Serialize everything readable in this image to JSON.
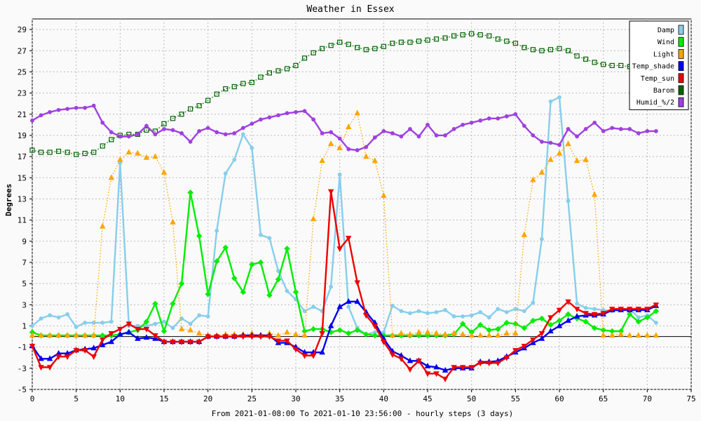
{
  "chart_data": {
    "type": "line",
    "title": "Weather in Essex",
    "xlabel": "From 2021-01-08:00 To 2021-01-10 23:56:00 - hourly steps (3 days)",
    "ylabel": "Degrees",
    "xlim": [
      0,
      75
    ],
    "ylim": [
      -5,
      30
    ],
    "x_ticks": [
      0,
      5,
      10,
      15,
      20,
      25,
      30,
      35,
      40,
      45,
      50,
      55,
      60,
      65,
      70,
      75
    ],
    "y_ticks": [
      -5,
      -3,
      -1,
      1,
      3,
      5,
      7,
      9,
      11,
      13,
      15,
      17,
      19,
      21,
      23,
      25,
      27,
      29
    ],
    "grid": true,
    "legend_position": "top-right",
    "series": [
      {
        "name": "Damp",
        "color": "#87CEEB",
        "style": "solid",
        "marker": "dot",
        "values": [
          1.0,
          1.7,
          2.0,
          1.8,
          2.1,
          0.9,
          1.3,
          1.3,
          1.3,
          1.4,
          16.4,
          1.0,
          1.0,
          1.0,
          1.2,
          1.4,
          0.8,
          1.7,
          1.2,
          2.0,
          1.9,
          10.0,
          15.4,
          16.7,
          19.1,
          17.8,
          9.6,
          9.3,
          6.2,
          4.3,
          3.5,
          2.4,
          2.8,
          2.4,
          4.7,
          15.3,
          2.8,
          0.8,
          0.2,
          0.4,
          0.4,
          2.9,
          2.4,
          2.2,
          2.4,
          2.2,
          2.3,
          2.5,
          1.9,
          1.9,
          2.0,
          2.3,
          1.8,
          2.6,
          2.3,
          2.6,
          2.4,
          3.2,
          9.2,
          22.2,
          22.6,
          12.8,
          3.1,
          2.7,
          2.6,
          2.5,
          2.4,
          2.5,
          2.6,
          1.8,
          2.0,
          1.3
        ]
      },
      {
        "name": "Wind",
        "color": "#00EE00",
        "style": "solid",
        "marker": "diamond",
        "values": [
          0.4,
          0.1,
          0.1,
          0.1,
          0.1,
          0.1,
          0.1,
          0.1,
          0.1,
          0.1,
          0.2,
          0.4,
          0.6,
          1.4,
          3.1,
          0.5,
          3.1,
          5.0,
          13.6,
          9.5,
          4.0,
          7.1,
          8.4,
          5.5,
          4.2,
          6.8,
          7.0,
          3.9,
          5.4,
          8.3,
          4.2,
          0.5,
          0.7,
          0.7,
          0.4,
          0.6,
          0.3,
          0.6,
          0.2,
          0.1,
          0.1,
          0.1,
          0.1,
          0.1,
          0.1,
          0.1,
          0.1,
          0.1,
          0.2,
          1.2,
          0.4,
          1.1,
          0.6,
          0.7,
          1.3,
          1.2,
          0.8,
          1.5,
          1.7,
          1.1,
          1.5,
          2.1,
          1.7,
          1.4,
          0.8,
          0.6,
          0.5,
          0.5,
          2.1,
          1.4,
          1.8,
          2.4
        ]
      },
      {
        "name": "Light",
        "color": "#FFA500",
        "style": "dotted",
        "marker": "triangle-up",
        "values": [
          0.1,
          0.1,
          0.1,
          0.1,
          0.1,
          0.1,
          0.1,
          0.1,
          10.4,
          15.0,
          16.7,
          17.4,
          17.3,
          16.9,
          17.0,
          15.5,
          10.8,
          0.7,
          0.6,
          0.3,
          0.1,
          0.1,
          0.2,
          0.2,
          0.2,
          0.3,
          0.1,
          0.3,
          0.1,
          0.4,
          0.2,
          0.1,
          11.1,
          16.6,
          18.2,
          17.8,
          19.8,
          21.1,
          17.0,
          16.6,
          13.3,
          0.1,
          0.3,
          0.2,
          0.4,
          0.4,
          0.3,
          0.2,
          0.3,
          0.2,
          0.1,
          0.1,
          0.1,
          0.1,
          0.3,
          0.3,
          9.6,
          14.8,
          15.5,
          16.7,
          17.3,
          18.2,
          16.6,
          16.7,
          13.4,
          0.1,
          0.1,
          0.2,
          0.1,
          0.1,
          0.1,
          0.1
        ]
      },
      {
        "name": "Temp_shade",
        "color": "#0000EE",
        "style": "solid",
        "marker": "triangle-up",
        "values": [
          -0.9,
          -2.1,
          -2.1,
          -1.6,
          -1.6,
          -1.3,
          -1.2,
          -1.1,
          -0.8,
          -0.5,
          0.2,
          0.4,
          -0.2,
          -0.1,
          -0.2,
          -0.5,
          -0.5,
          -0.5,
          -0.5,
          -0.5,
          0.0,
          0.0,
          0.0,
          0.0,
          0.1,
          0.1,
          0.1,
          0.1,
          -0.6,
          -0.6,
          -1.0,
          -1.5,
          -1.5,
          -1.5,
          1.0,
          2.8,
          3.3,
          3.3,
          2.3,
          1.3,
          -0.2,
          -1.4,
          -1.8,
          -2.3,
          -2.3,
          -2.8,
          -2.9,
          -3.2,
          -3.0,
          -3.0,
          -3.0,
          -2.4,
          -2.4,
          -2.3,
          -1.9,
          -1.5,
          -1.1,
          -0.6,
          -0.2,
          0.5,
          1.0,
          1.5,
          1.9,
          2.0,
          2.0,
          2.1,
          2.5,
          2.5,
          2.5,
          2.5,
          2.5,
          2.9
        ]
      },
      {
        "name": "Temp_sun",
        "color": "#EE0000",
        "style": "solid",
        "marker": "triangle-down",
        "values": [
          -0.9,
          -2.9,
          -2.9,
          -1.9,
          -1.9,
          -1.3,
          -1.3,
          -1.9,
          -0.3,
          0.3,
          0.7,
          1.2,
          0.7,
          0.7,
          0.1,
          -0.5,
          -0.5,
          -0.5,
          -0.5,
          -0.5,
          0.0,
          0.0,
          0.0,
          0.0,
          0.0,
          0.0,
          0.0,
          0.0,
          -0.4,
          -0.4,
          -1.2,
          -1.8,
          -1.8,
          0.3,
          13.7,
          8.3,
          9.3,
          5.1,
          2.0,
          1.0,
          -0.5,
          -1.7,
          -2.1,
          -3.1,
          -2.3,
          -3.5,
          -3.5,
          -4.0,
          -2.9,
          -2.9,
          -2.9,
          -2.5,
          -2.5,
          -2.5,
          -2.0,
          -1.3,
          -0.9,
          -0.3,
          0.3,
          1.8,
          2.5,
          3.3,
          2.6,
          2.2,
          2.1,
          2.2,
          2.6,
          2.6,
          2.6,
          2.6,
          2.6,
          3.0
        ]
      },
      {
        "name": "Barom",
        "color": "#006400",
        "style": "dotted",
        "marker": "square",
        "values": [
          17.6,
          17.4,
          17.4,
          17.5,
          17.4,
          17.2,
          17.3,
          17.4,
          18.0,
          18.6,
          19.0,
          19.1,
          19.1,
          19.5,
          19.4,
          20.1,
          20.6,
          21.0,
          21.5,
          21.8,
          22.3,
          22.9,
          23.4,
          23.6,
          23.9,
          24.0,
          24.5,
          24.9,
          25.1,
          25.3,
          25.6,
          26.3,
          26.8,
          27.2,
          27.5,
          27.8,
          27.6,
          27.3,
          27.1,
          27.2,
          27.4,
          27.7,
          27.8,
          27.8,
          27.9,
          28.0,
          28.1,
          28.2,
          28.4,
          28.5,
          28.6,
          28.5,
          28.4,
          28.1,
          27.9,
          27.7,
          27.3,
          27.1,
          27.0,
          27.1,
          27.2,
          27.0,
          26.5,
          26.2,
          25.9,
          25.7,
          25.6,
          25.6,
          25.5,
          25.2,
          24.9,
          24.6
        ]
      },
      {
        "name": "Humid_%/2",
        "color": "#A040E0",
        "style": "solid",
        "marker": "dot",
        "values": [
          20.4,
          20.9,
          21.2,
          21.4,
          21.5,
          21.6,
          21.6,
          21.8,
          20.2,
          19.3,
          18.9,
          18.9,
          19.1,
          19.9,
          19.1,
          19.6,
          19.5,
          19.2,
          18.4,
          19.4,
          19.7,
          19.3,
          19.1,
          19.2,
          19.7,
          20.1,
          20.5,
          20.7,
          20.9,
          21.1,
          21.2,
          21.3,
          20.5,
          19.2,
          19.3,
          18.7,
          17.7,
          17.6,
          17.9,
          18.8,
          19.4,
          19.2,
          18.9,
          19.6,
          18.9,
          20.0,
          19.0,
          19.0,
          19.6,
          20.0,
          20.2,
          20.4,
          20.6,
          20.6,
          20.8,
          21.0,
          19.9,
          19.0,
          18.4,
          18.3,
          18.1,
          19.6,
          18.9,
          19.6,
          20.2,
          19.4,
          19.7,
          19.6,
          19.6,
          19.2,
          19.4,
          19.4
        ]
      }
    ]
  }
}
